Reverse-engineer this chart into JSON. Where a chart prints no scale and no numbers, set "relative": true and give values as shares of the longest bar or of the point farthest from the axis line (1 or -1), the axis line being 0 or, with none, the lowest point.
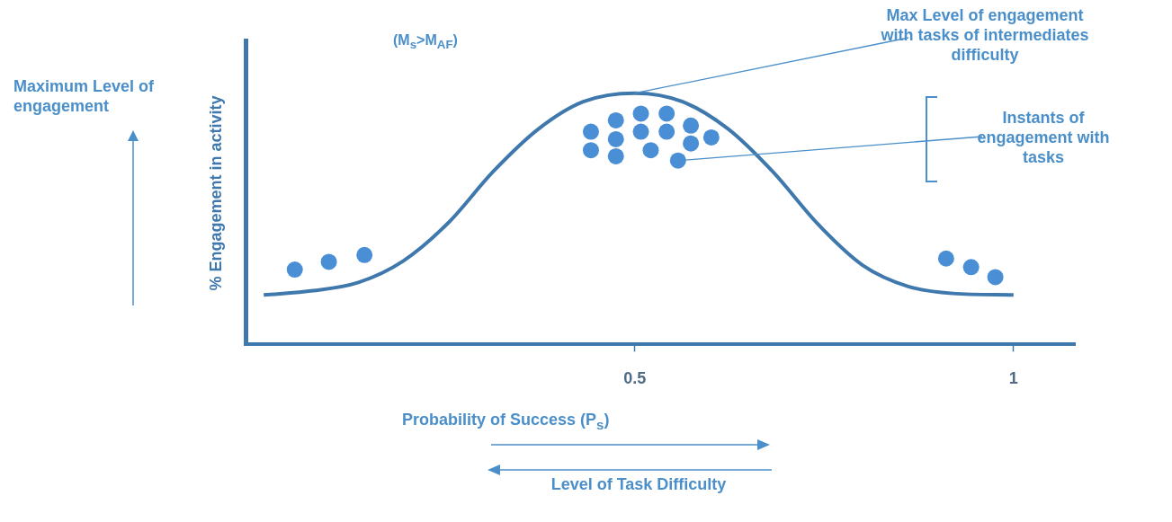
{
  "chart_data": {
    "type": "scatter",
    "title": "(M$_{s}$>M$_{AF}$)",
    "xlabel": "Probability of Success (P$_{s}$)",
    "ylabel": "% Engagement in activity",
    "relative": true,
    "xlim": [
      -0.014,
      1.081
    ],
    "xticks": [
      0.5,
      1
    ],
    "grid": false,
    "legend": false,
    "marker": "circle",
    "series": [
      {
        "type": "line",
        "color": "#3f78ad",
        "marker": "none",
        "x": [
          0.01,
          0.075,
          0.135,
          0.194,
          0.254,
          0.313,
          0.373,
          0.432,
          0.5,
          0.563,
          0.623,
          0.682,
          0.742,
          0.801,
          0.861,
          0.92,
          1.0
        ],
        "values": [
          0.197,
          0.214,
          0.247,
          0.332,
          0.485,
          0.688,
          0.858,
          0.966,
          1,
          0.966,
          0.858,
          0.688,
          0.478,
          0.315,
          0.231,
          0.203,
          0.197
        ]
      },
      {
        "type": "scatter",
        "color": "#4a8fd6",
        "x": [
          0.051,
          0.096,
          0.143,
          0.508,
          0.542,
          0.475,
          0.574,
          0.442,
          0.508,
          0.542,
          0.475,
          0.601,
          0.574,
          0.442,
          0.521,
          0.475,
          0.557,
          0.911,
          0.944,
          0.976
        ],
        "values": [
          0.298,
          0.329,
          0.356,
          0.919,
          0.919,
          0.892,
          0.871,
          0.847,
          0.847,
          0.847,
          0.817,
          0.824,
          0.8,
          0.773,
          0.773,
          0.749,
          0.732,
          0.342,
          0.308,
          0.268
        ]
      }
    ],
    "annotations": [
      {
        "text": "Max Level of engagement with tasks of intermediates difficulty",
        "x": 0.5,
        "y": 1
      },
      {
        "text": "Instants of engagement with tasks",
        "x": 0.557,
        "y": 0.732
      },
      "Maximum Level of engagement",
      "Level of Task Difficulty"
    ]
  }
}
